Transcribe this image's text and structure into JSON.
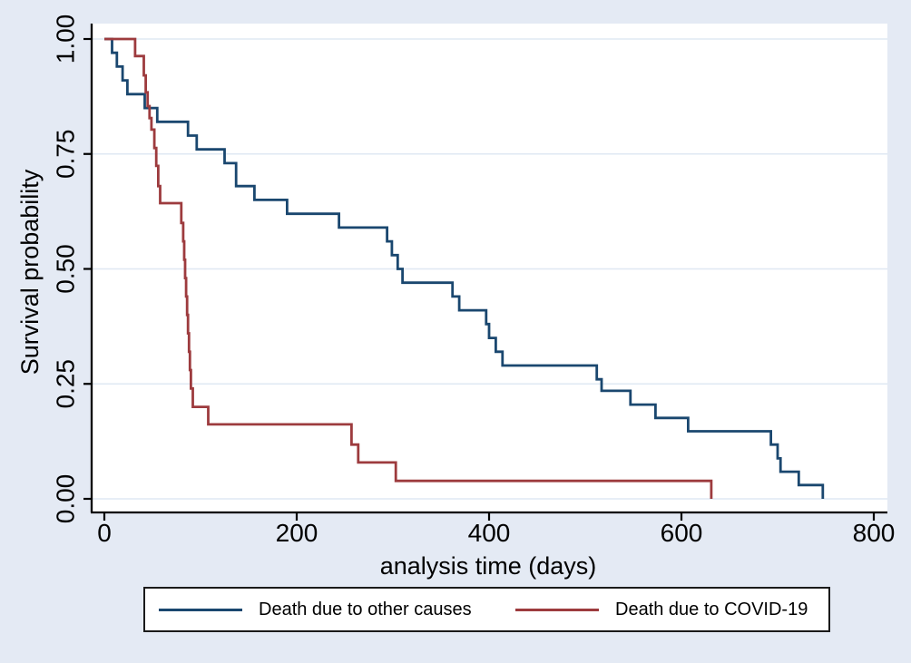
{
  "figure": {
    "background_color": "#e4eaf4",
    "plot_background_color": "#ffffff",
    "grid_color": "#dfe8f3",
    "axis_color": "#000000",
    "legend": {
      "background_color": "#ffffff",
      "border_color": "#1a1a1a",
      "position": "bottom"
    }
  },
  "chart_data": {
    "type": "line",
    "subtype": "kaplan-meier-survival-step",
    "title": "",
    "xlabel": "analysis time (days)",
    "ylabel": "Survival probability",
    "xlim": [
      0,
      800
    ],
    "ylim": [
      0,
      1
    ],
    "grid": true,
    "x_ticks": [
      0,
      200,
      400,
      600,
      800
    ],
    "x_tick_labels": [
      "0",
      "200",
      "400",
      "600",
      "800"
    ],
    "y_ticks": [
      0,
      0.25,
      0.5,
      0.75,
      1
    ],
    "y_tick_labels": [
      "0.00",
      "0.25",
      "0.50",
      "0.75",
      "1.00"
    ],
    "legend_position": "bottom",
    "series": [
      {
        "name": "Death due to other causes",
        "color": "#1a476f",
        "points": [
          [
            0,
            1.0
          ],
          [
            8,
            0.97
          ],
          [
            13,
            0.94
          ],
          [
            19,
            0.91
          ],
          [
            24,
            0.88
          ],
          [
            42,
            0.85
          ],
          [
            55,
            0.82
          ],
          [
            87,
            0.79
          ],
          [
            96,
            0.76
          ],
          [
            125,
            0.73
          ],
          [
            137,
            0.68
          ],
          [
            156,
            0.65
          ],
          [
            190,
            0.62
          ],
          [
            244,
            0.59
          ],
          [
            294,
            0.56
          ],
          [
            299,
            0.53
          ],
          [
            305,
            0.5
          ],
          [
            310,
            0.47
          ],
          [
            362,
            0.44
          ],
          [
            369,
            0.41
          ],
          [
            397,
            0.38
          ],
          [
            400,
            0.35
          ],
          [
            407,
            0.32
          ],
          [
            414,
            0.29
          ],
          [
            512,
            0.26
          ],
          [
            517,
            0.235
          ],
          [
            547,
            0.205
          ],
          [
            573,
            0.176
          ],
          [
            607,
            0.147
          ],
          [
            693,
            0.118
          ],
          [
            700,
            0.088
          ],
          [
            703,
            0.059
          ],
          [
            722,
            0.03
          ],
          [
            747,
            0.0
          ]
        ]
      },
      {
        "name": "Death due to COVID-19",
        "color": "#9d3b3e",
        "points": [
          [
            0,
            1.0
          ],
          [
            32,
            0.963
          ],
          [
            41,
            0.921
          ],
          [
            43,
            0.884
          ],
          [
            45,
            0.854
          ],
          [
            47,
            0.828
          ],
          [
            49,
            0.803
          ],
          [
            52,
            0.763
          ],
          [
            54,
            0.724
          ],
          [
            56,
            0.68
          ],
          [
            58,
            0.643
          ],
          [
            80,
            0.6
          ],
          [
            82,
            0.56
          ],
          [
            83,
            0.52
          ],
          [
            84,
            0.48
          ],
          [
            85,
            0.44
          ],
          [
            86,
            0.4
          ],
          [
            87,
            0.36
          ],
          [
            88,
            0.32
          ],
          [
            89,
            0.28
          ],
          [
            90,
            0.24
          ],
          [
            92,
            0.2
          ],
          [
            108,
            0.162
          ],
          [
            257,
            0.118
          ],
          [
            264,
            0.079
          ],
          [
            303,
            0.039
          ],
          [
            631,
            0.0
          ]
        ]
      }
    ]
  }
}
